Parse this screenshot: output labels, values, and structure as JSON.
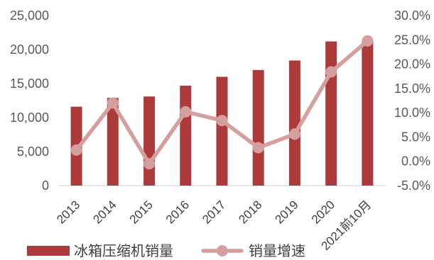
{
  "chart_data": {
    "type": "bar",
    "combo": [
      "bar",
      "line"
    ],
    "categories": [
      "2013",
      "2014",
      "2015",
      "2016",
      "2017",
      "2018",
      "2019",
      "2020",
      "2021前10月"
    ],
    "series": [
      {
        "name": "冰箱压缩机销量",
        "type": "bar",
        "axis": "left",
        "color": "#ad3a3a",
        "values": [
          11600,
          12900,
          13100,
          14700,
          16000,
          17000,
          18400,
          21200,
          21300
        ]
      },
      {
        "name": "销量增速",
        "type": "line",
        "axis": "right",
        "marker": "circle",
        "color": "#d69f9f",
        "values": [
          2.3,
          12.0,
          -0.5,
          10.2,
          8.4,
          2.8,
          5.6,
          18.4,
          24.8
        ]
      }
    ],
    "y_left": {
      "ylim": [
        0,
        25000
      ],
      "step": 5000,
      "tick_labels": [
        "0",
        "5,000",
        "10,000",
        "15,000",
        "20,000",
        "25,000"
      ]
    },
    "y_right": {
      "ylim": [
        -5,
        30
      ],
      "step": 5,
      "tick_labels": [
        "-5.0%",
        "0.0%",
        "5.0%",
        "10.0%",
        "15.0%",
        "20.0%",
        "25.0%",
        "30.0%"
      ]
    },
    "grid": false,
    "legend_position": "bottom",
    "axis_color": "#d9d9d9"
  }
}
